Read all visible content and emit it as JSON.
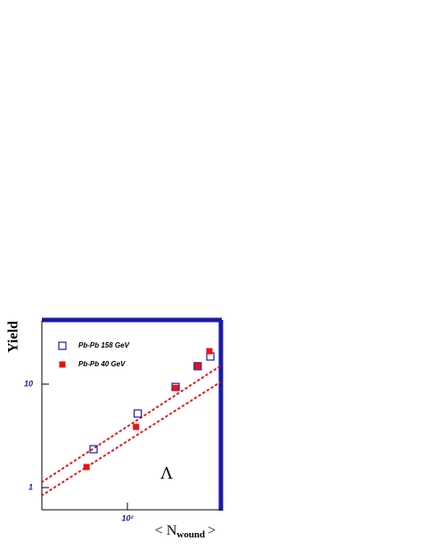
{
  "chart_data": {
    "type": "scatter",
    "log_x": true,
    "log_y": true,
    "y_label": "Yield",
    "x_label": {
      "main": "< N",
      "sub": "wound",
      "end": ">"
    },
    "annotation": "Λ",
    "xlim": [
      27.5,
      405
    ],
    "ylim": [
      0.61,
      40.9
    ],
    "xticks": [
      {
        "value": 100,
        "label": "10²"
      }
    ],
    "yticks": [
      {
        "value": 1,
        "label": "1"
      },
      10
    ],
    "series": [
      {
        "name": "Pb-Pb 158 GeV",
        "color": "#1a1aa8",
        "marker": "open-square",
        "x": [
          60,
          117,
          207,
          289,
          350
        ],
        "values": [
          2.35,
          5.2,
          9.4,
          14.9,
          18.5
        ]
      },
      {
        "name": "Pb-Pb  40 GeV",
        "color": "#ee1111",
        "marker": "filled-square",
        "x": [
          54,
          114,
          207,
          289,
          345
        ],
        "values": [
          1.58,
          3.86,
          9.2,
          14.9,
          20.8
        ]
      }
    ],
    "fit_lines": [
      {
        "color": "#ee1111",
        "x": [
          27.5,
          405
        ],
        "values": [
          1.13,
          14.9
        ]
      },
      {
        "color": "#ee1111",
        "x": [
          27.5,
          405
        ],
        "values": [
          0.84,
          10.4
        ]
      }
    ]
  }
}
